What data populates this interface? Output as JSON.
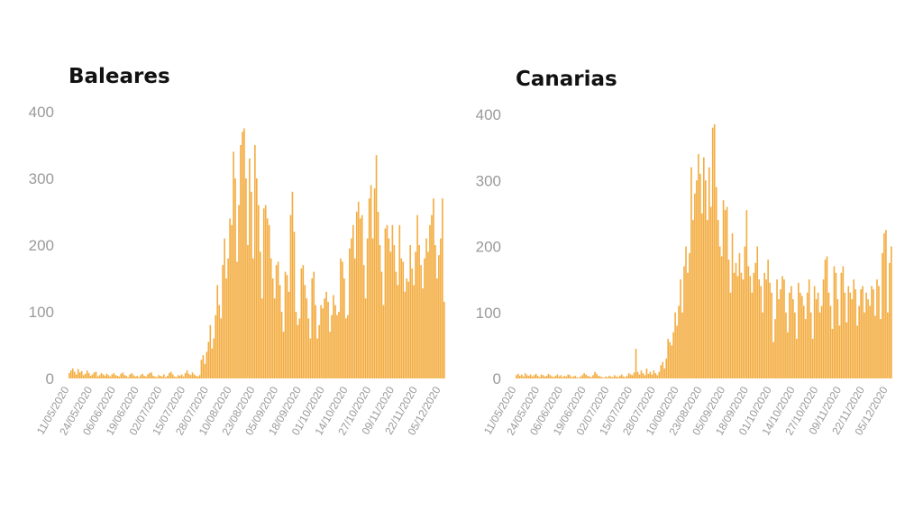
{
  "chart_data": [
    {
      "type": "bar",
      "title": "Baleares",
      "xlabel": "",
      "ylabel": "",
      "ylim": [
        0,
        400
      ],
      "yticks": [
        "0",
        "100",
        "200",
        "300",
        "400"
      ],
      "xtick_labels": [
        "11/05/2020",
        "24/05/2020",
        "06/06/2020",
        "19/06/2020",
        "02/07/2020",
        "15/07/2020",
        "28/07/2020",
        "10/08/2020",
        "23/08/2020",
        "05/09/2020",
        "18/09/2020",
        "01/10/2020",
        "14/10/2020",
        "27/10/2020",
        "09/11/2020",
        "22/11/2020",
        "05/12/2020"
      ],
      "xtick_interval_days": 13,
      "grid": false,
      "color": "#f3ac40",
      "values": [
        8,
        12,
        15,
        10,
        6,
        14,
        9,
        11,
        5,
        7,
        12,
        8,
        4,
        6,
        9,
        10,
        3,
        5,
        8,
        6,
        4,
        7,
        5,
        3,
        6,
        8,
        5,
        4,
        3,
        7,
        9,
        5,
        4,
        2,
        6,
        8,
        5,
        3,
        4,
        2,
        5,
        7,
        4,
        3,
        6,
        8,
        9,
        4,
        3,
        2,
        5,
        4,
        3,
        6,
        2,
        4,
        8,
        10,
        6,
        3,
        2,
        5,
        4,
        6,
        3,
        8,
        12,
        7,
        5,
        9,
        6,
        4,
        3,
        5,
        28,
        35,
        22,
        40,
        55,
        80,
        45,
        60,
        95,
        140,
        110,
        90,
        170,
        210,
        150,
        180,
        240,
        230,
        340,
        300,
        175,
        260,
        350,
        370,
        375,
        300,
        200,
        330,
        280,
        180,
        350,
        300,
        260,
        190,
        120,
        255,
        260,
        240,
        230,
        180,
        150,
        120,
        170,
        175,
        140,
        100,
        70,
        160,
        155,
        130,
        245,
        280,
        220,
        100,
        80,
        90,
        165,
        170,
        140,
        120,
        90,
        60,
        150,
        160,
        110,
        60,
        80,
        110,
        105,
        120,
        130,
        115,
        70,
        95,
        125,
        110,
        95,
        100,
        180,
        175,
        150,
        90,
        95,
        195,
        210,
        230,
        180,
        250,
        265,
        240,
        245,
        170,
        120,
        210,
        270,
        290,
        210,
        285,
        335,
        250,
        200,
        160,
        110,
        225,
        230,
        210,
        190,
        230,
        200,
        160,
        140,
        230,
        180,
        175,
        130,
        150,
        145,
        200,
        165,
        140,
        190,
        245,
        200,
        170,
        135,
        180,
        210,
        190,
        230,
        245,
        270,
        200,
        150,
        185,
        210,
        270,
        115
      ]
    },
    {
      "type": "bar",
      "title": "Canarias",
      "xlabel": "",
      "ylabel": "",
      "ylim": [
        0,
        400
      ],
      "yticks": [
        "0",
        "100",
        "200",
        "300",
        "400"
      ],
      "xtick_labels": [
        "11/05/2020",
        "24/05/2020",
        "06/06/2020",
        "19/06/2020",
        "02/07/2020",
        "15/07/2020",
        "28/07/2020",
        "10/08/2020",
        "23/08/2020",
        "05/09/2020",
        "18/09/2020",
        "01/10/2020",
        "14/10/2020",
        "27/10/2020",
        "09/11/2020",
        "22/11/2020",
        "05/12/2020"
      ],
      "xtick_interval_days": 13,
      "grid": false,
      "color": "#f3ac40",
      "values": [
        5,
        7,
        4,
        6,
        3,
        8,
        5,
        4,
        6,
        3,
        5,
        7,
        4,
        2,
        6,
        5,
        3,
        4,
        7,
        5,
        3,
        2,
        4,
        6,
        3,
        5,
        2,
        4,
        3,
        6,
        5,
        2,
        3,
        4,
        2,
        1,
        3,
        5,
        8,
        6,
        4,
        3,
        2,
        5,
        10,
        7,
        4,
        3,
        2,
        1,
        3,
        2,
        4,
        3,
        2,
        5,
        3,
        2,
        4,
        6,
        3,
        2,
        4,
        8,
        6,
        5,
        9,
        45,
        10,
        6,
        12,
        8,
        5,
        15,
        7,
        10,
        6,
        12,
        8,
        5,
        10,
        20,
        25,
        15,
        30,
        60,
        55,
        50,
        70,
        100,
        80,
        110,
        150,
        100,
        170,
        200,
        160,
        190,
        320,
        240,
        280,
        300,
        340,
        310,
        250,
        335,
        300,
        240,
        320,
        260,
        380,
        385,
        290,
        240,
        200,
        185,
        270,
        255,
        260,
        180,
        130,
        220,
        160,
        175,
        155,
        190,
        160,
        150,
        200,
        255,
        170,
        155,
        130,
        160,
        175,
        200,
        150,
        140,
        100,
        160,
        150,
        180,
        145,
        130,
        55,
        90,
        150,
        120,
        135,
        155,
        150,
        100,
        70,
        130,
        140,
        120,
        100,
        60,
        145,
        130,
        125,
        110,
        90,
        130,
        150,
        100,
        60,
        140,
        120,
        130,
        100,
        110,
        150,
        180,
        185,
        130,
        110,
        75,
        170,
        160,
        120,
        80,
        160,
        170,
        130,
        85,
        140,
        130,
        120,
        150,
        135,
        80,
        110,
        135,
        140,
        100,
        130,
        120,
        110,
        140,
        135,
        95,
        150,
        140,
        90,
        190,
        220,
        225,
        100,
        175,
        200
      ]
    }
  ]
}
